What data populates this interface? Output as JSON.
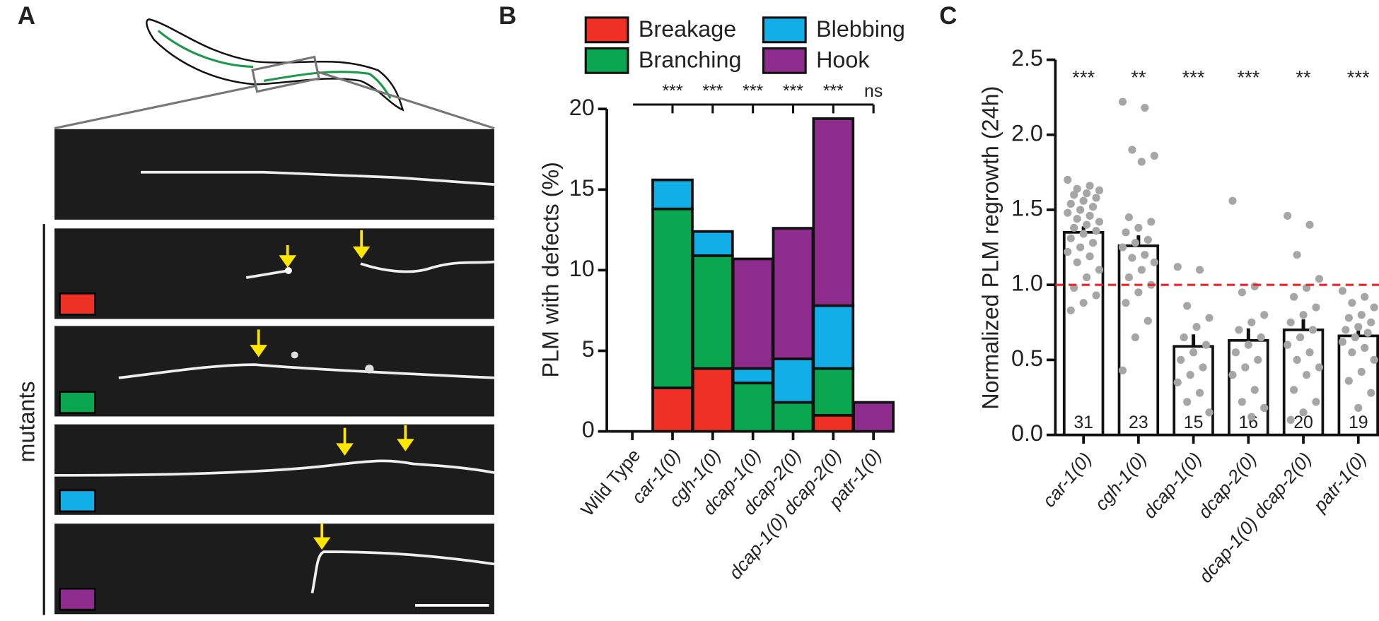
{
  "image_panel": {
    "label": "A",
    "side_label": "mutants"
  },
  "chart_data": [
    {
      "type": "bar",
      "panel_label": "B",
      "stacked": true,
      "ylabel": "PLM with defects (%)",
      "categories": [
        "Wild Type",
        "car-1(0)",
        "cgh-1(0)",
        "dcap-1(0)",
        "dcap-2(0)",
        "dcap-1(0) dcap-2(0)",
        "patr-1(0)"
      ],
      "series": [
        {
          "name": "Breakage",
          "color": "#ee3124",
          "values": [
            0,
            2.7,
            3.9,
            0,
            0,
            1.0,
            0
          ]
        },
        {
          "name": "Branching",
          "color": "#0aa650",
          "values": [
            0,
            11.1,
            7.0,
            3.0,
            1.8,
            2.9,
            0
          ]
        },
        {
          "name": "Blebbing",
          "color": "#12aee8",
          "values": [
            0,
            1.8,
            1.5,
            0.9,
            2.7,
            3.9,
            0
          ]
        },
        {
          "name": "Hook",
          "color": "#8e2c8d",
          "values": [
            0,
            0,
            0,
            6.8,
            8.1,
            11.6,
            1.8
          ]
        }
      ],
      "annotations": [
        null,
        "***",
        "***",
        "***",
        "***",
        "***",
        "ns"
      ],
      "ylim": [
        0,
        20
      ],
      "yticks": [
        0,
        5,
        10,
        15,
        20
      ]
    },
    {
      "type": "bar_scatter",
      "panel_label": "C",
      "ylabel": "Normalized PLM regrowth (24h)",
      "categories": [
        "car-1(0)",
        "cgh-1(0)",
        "dcap-1(0)",
        "dcap-2(0)",
        "dcap-1(0) dcap-2(0)",
        "patr-1(0)"
      ],
      "values": [
        1.35,
        1.26,
        0.59,
        0.63,
        0.7,
        0.66
      ],
      "errors": [
        0.04,
        0.07,
        0.08,
        0.08,
        0.07,
        0.05
      ],
      "counts": [
        31,
        23,
        15,
        16,
        20,
        19
      ],
      "annotations": [
        "***",
        "**",
        "***",
        "***",
        "**",
        "***"
      ],
      "points": [
        [
          1.7,
          1.66,
          1.64,
          1.63,
          1.61,
          1.6,
          1.58,
          1.56,
          1.54,
          1.52,
          1.5,
          1.48,
          1.46,
          1.44,
          1.42,
          1.4,
          1.38,
          1.36,
          1.34,
          1.31,
          1.28,
          1.25,
          1.22,
          1.19,
          1.15,
          1.1,
          1.05,
          0.98,
          0.93,
          0.88,
          0.83
        ],
        [
          2.22,
          2.18,
          1.9,
          1.86,
          1.82,
          1.45,
          1.42,
          1.38,
          1.35,
          1.3,
          1.28,
          1.25,
          1.2,
          1.18,
          1.15,
          1.1,
          1.05,
          1.0,
          0.95,
          0.88,
          0.76,
          0.65,
          0.43
        ],
        [
          1.12,
          1.1,
          0.86,
          0.78,
          0.72,
          0.65,
          0.6,
          0.55,
          0.5,
          0.45,
          0.4,
          0.35,
          0.28,
          0.22,
          0.15
        ],
        [
          1.56,
          0.99,
          0.95,
          0.8,
          0.75,
          0.7,
          0.65,
          0.6,
          0.55,
          0.5,
          0.45,
          0.4,
          0.3,
          0.22,
          0.18,
          0.12
        ],
        [
          1.46,
          1.4,
          1.2,
          1.04,
          0.98,
          0.92,
          0.85,
          0.8,
          0.75,
          0.7,
          0.65,
          0.6,
          0.55,
          0.5,
          0.45,
          0.4,
          0.3,
          0.22,
          0.15,
          0.1
        ],
        [
          0.96,
          0.92,
          0.88,
          0.85,
          0.8,
          0.78,
          0.75,
          0.72,
          0.7,
          0.68,
          0.65,
          0.62,
          0.58,
          0.55,
          0.5,
          0.42,
          0.36,
          0.28,
          0.18
        ]
      ],
      "point_color": "#a6a6a6",
      "bar_color": "#ffffff",
      "refline": 1,
      "refline_color": "#e8262c",
      "ylim": [
        0,
        2.5
      ],
      "yticks": [
        {
          "value": 0,
          "label": "0.0"
        },
        {
          "value": 0.5,
          "label": "0.5"
        },
        {
          "value": 1,
          "label": "1.0"
        },
        {
          "value": 1.5,
          "label": "1.5"
        },
        {
          "value": 2,
          "label": "2.0"
        },
        {
          "value": 2.5,
          "label": "2.5"
        }
      ]
    }
  ]
}
